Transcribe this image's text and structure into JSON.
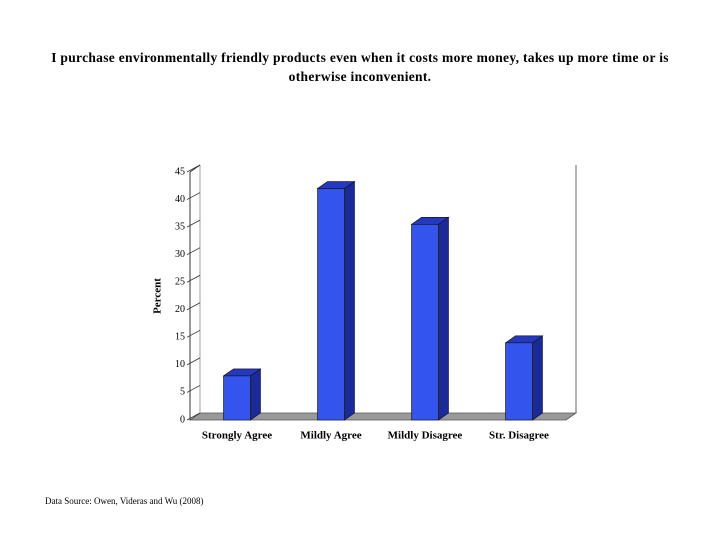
{
  "chart_data": {
    "type": "bar",
    "title": "I purchase environmentally friendly products even when it costs more money, takes up more time or is otherwise inconvenient.",
    "ylabel": "Percent",
    "categories": [
      "Strongly Agree",
      "Mildly Agree",
      "Mildly Disagree",
      "Str. Disagree"
    ],
    "values": [
      8,
      42,
      35.5,
      14
    ],
    "color": "#3355ee",
    "ylim": [
      0,
      45
    ],
    "yticks": [
      0,
      5,
      10,
      15,
      20,
      25,
      30,
      35,
      40,
      45
    ],
    "source": "Data Source: Owen, Videras and Wu (2008)"
  }
}
